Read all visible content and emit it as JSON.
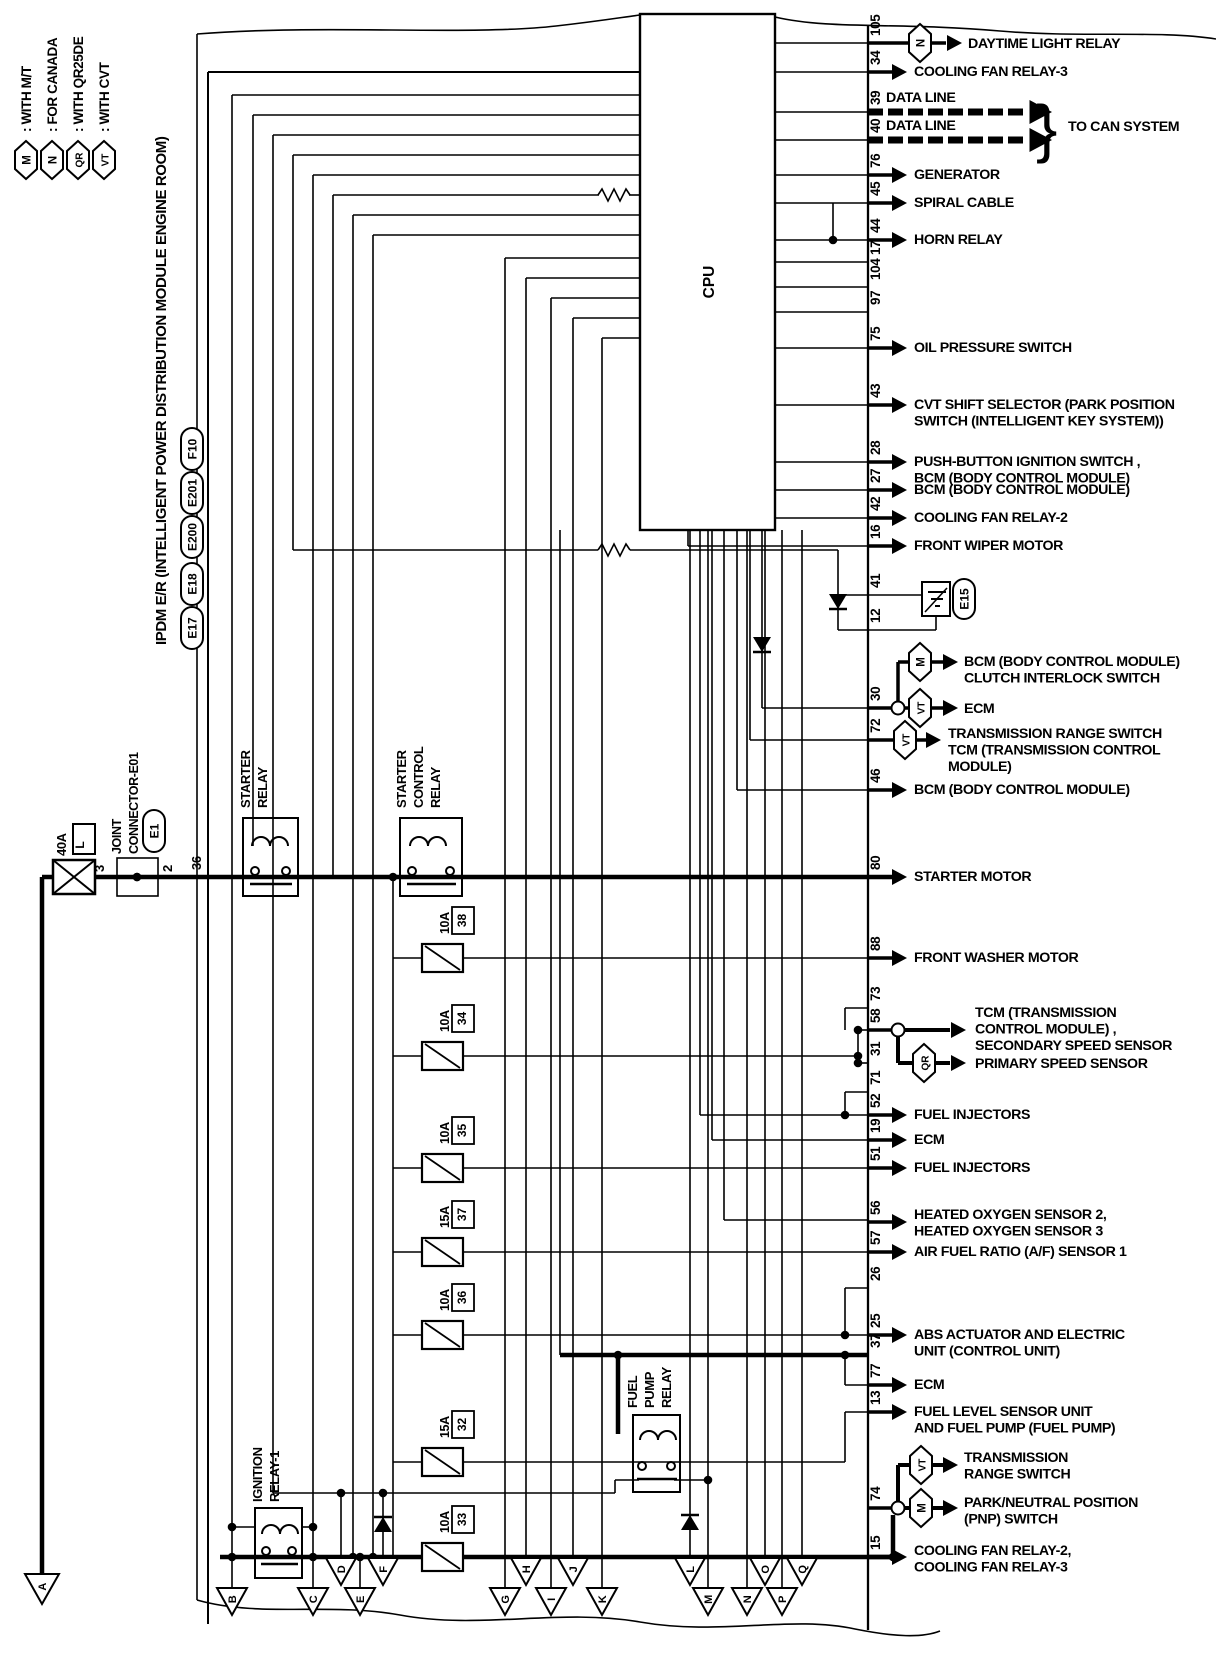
{
  "colors": {
    "ink": "#000000",
    "paper": "#ffffff"
  },
  "legend": {
    "items": [
      {
        "tag": "M",
        "label": ": WITH M/T"
      },
      {
        "tag": "N",
        "label": ": FOR CANADA"
      },
      {
        "tag": "QR",
        "label": ": WITH QR25DE"
      },
      {
        "tag": "VT",
        "label": ": WITH CVT"
      }
    ]
  },
  "module": {
    "title": "IPDM E/R (INTELLIGENT POWER DISTRIBUTION MODULE ENGINE ROOM)",
    "connector_codes": [
      "F10",
      "E201",
      "E200",
      "E18",
      "E17"
    ],
    "cpu": "CPU"
  },
  "supply": {
    "fuse_rating": "40A",
    "fuse_code": "L",
    "joint_connector_lines": [
      "JOINT",
      "CONNECTOR-E01"
    ],
    "joint_connector_code": "E1",
    "pin_in": "3",
    "pin_out": "2",
    "module_pin": "36"
  },
  "relays": [
    {
      "id": "starter-relay",
      "lines": [
        "STARTER",
        "RELAY"
      ]
    },
    {
      "id": "starter-control-relay",
      "lines": [
        "STARTER",
        "CONTROL",
        "RELAY"
      ]
    },
    {
      "id": "ignition-relay-1",
      "lines": [
        "IGNITION",
        "RELAY-1"
      ]
    },
    {
      "id": "fuel-pump-relay",
      "lines": [
        "FUEL",
        "PUMP",
        "RELAY"
      ]
    }
  ],
  "fuses": [
    {
      "rating": "10A",
      "slot": "38"
    },
    {
      "rating": "10A",
      "slot": "34"
    },
    {
      "rating": "10A",
      "slot": "35"
    },
    {
      "rating": "15A",
      "slot": "37"
    },
    {
      "rating": "10A",
      "slot": "36"
    },
    {
      "rating": "15A",
      "slot": "32"
    },
    {
      "rating": "10A",
      "slot": "33"
    }
  ],
  "can_note": "TO CAN SYSTEM",
  "ground_connector": "E15",
  "outputs": [
    {
      "pin": "105",
      "tag": "N",
      "lines": [
        "DAYTIME LIGHT RELAY"
      ]
    },
    {
      "pin": "34",
      "lines": [
        "COOLING FAN RELAY-3"
      ]
    },
    {
      "pin": "39",
      "lines": [
        "DATA LINE"
      ]
    },
    {
      "pin": "40",
      "lines": [
        "DATA LINE"
      ]
    },
    {
      "pin": "76",
      "lines": [
        "GENERATOR"
      ]
    },
    {
      "pin": "45",
      "lines": [
        "SPIRAL CABLE"
      ]
    },
    {
      "pin": "44",
      "lines": [
        "HORN RELAY"
      ]
    },
    {
      "pin": "17"
    },
    {
      "pin": "104"
    },
    {
      "pin": "97"
    },
    {
      "pin": "75",
      "lines": [
        "OIL PRESSURE SWITCH"
      ]
    },
    {
      "pin": "43",
      "lines": [
        "CVT SHIFT SELECTOR (PARK POSITION",
        "SWITCH (INTELLIGENT KEY SYSTEM))"
      ]
    },
    {
      "pin": "28",
      "lines": [
        "PUSH-BUTTON IGNITION SWITCH ,",
        "BCM (BODY CONTROL MODULE)"
      ]
    },
    {
      "pin": "27",
      "lines": [
        "BCM (BODY CONTROL MODULE)"
      ]
    },
    {
      "pin": "42",
      "lines": [
        "COOLING FAN RELAY-2"
      ]
    },
    {
      "pin": "16",
      "lines": [
        "FRONT WIPER MOTOR"
      ]
    },
    {
      "pin": "41"
    },
    {
      "pin": "12"
    },
    {
      "pin": "30",
      "branches": [
        {
          "tag": "M",
          "lines": [
            "BCM (BODY CONTROL MODULE)",
            "CLUTCH INTERLOCK SWITCH"
          ]
        },
        {
          "tag": "VT",
          "lines": [
            "ECM"
          ]
        }
      ]
    },
    {
      "pin": "72",
      "tag": "VT",
      "lines": [
        "TRANSMISSION RANGE SWITCH",
        "TCM (TRANSMISSION CONTROL",
        "MODULE)"
      ]
    },
    {
      "pin": "46",
      "lines": [
        "BCM (BODY CONTROL MODULE)"
      ]
    },
    {
      "pin": "80",
      "lines": [
        "STARTER MOTOR"
      ]
    },
    {
      "pin": "88",
      "lines": [
        "FRONT WASHER MOTOR"
      ]
    },
    {
      "pin": "73"
    },
    {
      "pin": "58",
      "branches": [
        {
          "lines": [
            "TCM (TRANSMISSION",
            "CONTROL MODULE) ,",
            "SECONDARY SPEED SENSOR"
          ]
        },
        {
          "tag": "QR",
          "lines": [
            "PRIMARY SPEED SENSOR"
          ]
        }
      ]
    },
    {
      "pin": "31"
    },
    {
      "pin": "71"
    },
    {
      "pin": "52",
      "lines": [
        "FUEL INJECTORS"
      ]
    },
    {
      "pin": "19",
      "lines": [
        "ECM"
      ]
    },
    {
      "pin": "51",
      "lines": [
        "FUEL INJECTORS"
      ]
    },
    {
      "pin": "56",
      "lines": [
        "HEATED OXYGEN SENSOR 2,",
        "HEATED OXYGEN SENSOR 3"
      ]
    },
    {
      "pin": "57",
      "lines": [
        "AIR FUEL RATIO (A/F) SENSOR 1"
      ]
    },
    {
      "pin": "26"
    },
    {
      "pin": "25",
      "lines": [
        "ABS ACTUATOR AND ELECTRIC",
        "UNIT (CONTROL UNIT)"
      ]
    },
    {
      "pin": "37"
    },
    {
      "pin": "77",
      "lines": [
        "ECM"
      ]
    },
    {
      "pin": "13",
      "lines": [
        "FUEL LEVEL SENSOR UNIT",
        "AND FUEL PUMP (FUEL PUMP)"
      ]
    },
    {
      "tag": "VT",
      "lines": [
        "TRANSMISSION",
        "RANGE SWITCH"
      ]
    },
    {
      "pin": "74",
      "tag": "M",
      "lines": [
        "PARK/NEUTRAL POSITION",
        "(PNP) SWITCH"
      ]
    },
    {
      "pin": "15",
      "lines": [
        "COOLING FAN RELAY-2,",
        "COOLING FAN RELAY-3"
      ]
    }
  ],
  "bottom_connectors": {
    "main": "A",
    "letters": [
      "B",
      "C",
      "D",
      "E",
      "F",
      "G",
      "H",
      "I",
      "J",
      "K",
      "L",
      "M",
      "N",
      "O",
      "P",
      "Q"
    ]
  }
}
